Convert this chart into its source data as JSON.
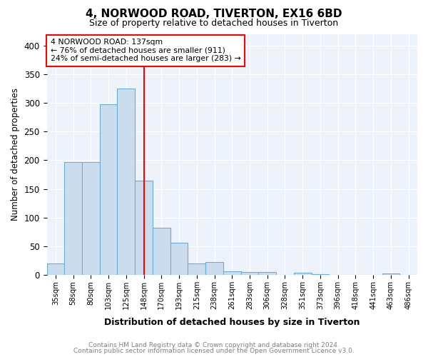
{
  "title1": "4, NORWOOD ROAD, TIVERTON, EX16 6BD",
  "title2": "Size of property relative to detached houses in Tiverton",
  "xlabel": "Distribution of detached houses by size in Tiverton",
  "ylabel": "Number of detached properties",
  "bin_labels": [
    "35sqm",
    "58sqm",
    "80sqm",
    "103sqm",
    "125sqm",
    "148sqm",
    "170sqm",
    "193sqm",
    "215sqm",
    "238sqm",
    "261sqm",
    "283sqm",
    "306sqm",
    "328sqm",
    "351sqm",
    "373sqm",
    "396sqm",
    "418sqm",
    "441sqm",
    "463sqm",
    "486sqm"
  ],
  "bar_heights": [
    20,
    197,
    197,
    298,
    325,
    165,
    82,
    57,
    20,
    23,
    7,
    6,
    5,
    0,
    4,
    2,
    1,
    0,
    0,
    3,
    0
  ],
  "bar_color": "#ccdcef",
  "bar_edge_color": "#6aaed6",
  "reference_line_x": 5.0,
  "reference_line_color": "red",
  "annotation_line1": "4 NORWOOD ROAD: 137sqm",
  "annotation_line2": "← 76% of detached houses are smaller (911)",
  "annotation_line3": "24% of semi-detached houses are larger (283) →",
  "ylim": [
    0,
    420
  ],
  "yticks": [
    0,
    50,
    100,
    150,
    200,
    250,
    300,
    350,
    400
  ],
  "footer1": "Contains HM Land Registry data © Crown copyright and database right 2024.",
  "footer2": "Contains public sector information licensed under the Open Government Licence v3.0.",
  "bg_color": "#eef3fb"
}
